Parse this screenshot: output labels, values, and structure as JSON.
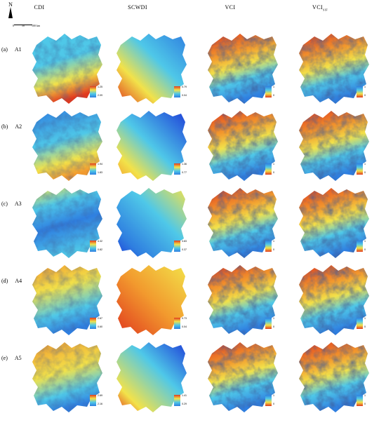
{
  "compass": {
    "north_label": "N"
  },
  "scale_labels": [
    "0",
    "50",
    "100 km"
  ],
  "columns": [
    "CDI",
    "SCWDI",
    "VCI",
    "VCI"
  ],
  "vci_subscript": "SIF",
  "rows": [
    {
      "tag": "(a)",
      "name": "A1",
      "legends": [
        [
          "1.25",
          "2.09"
        ],
        [
          "0.79",
          "0.04"
        ],
        [
          "1",
          "0"
        ],
        [
          "1",
          "0"
        ]
      ]
    },
    {
      "tag": "(b)",
      "name": "A2",
      "legends": [
        [
          "1.94",
          "1.83"
        ],
        [
          "1.36",
          "0.77"
        ],
        [
          "1",
          "0"
        ],
        [
          "1",
          "0"
        ]
      ]
    },
    {
      "tag": "(c)",
      "name": "A3",
      "legends": [
        [
          "4.32",
          "0.82"
        ],
        [
          "3.83",
          "0.37"
        ],
        [
          "1",
          "0"
        ],
        [
          "1",
          "0"
        ]
      ]
    },
    {
      "tag": "(d)",
      "name": "A4",
      "legends": [
        [
          "2.67",
          "0.60"
        ],
        [
          "0.73",
          "0.04"
        ],
        [
          "1",
          "0"
        ],
        [
          "1",
          "0"
        ]
      ]
    },
    {
      "tag": "(e)",
      "name": "A5",
      "legends": [
        [
          "2.69",
          "2.16"
        ],
        [
          "1.41",
          "0.29"
        ],
        [
          "1",
          "0"
        ],
        [
          "1",
          "0"
        ]
      ]
    }
  ],
  "colors": {
    "deep_blue": "#1e3fd8",
    "blue": "#2f7fe0",
    "cyan": "#4fc8e8",
    "yellow": "#f2e24a",
    "orange": "#f29a2e",
    "red": "#e0391e"
  }
}
